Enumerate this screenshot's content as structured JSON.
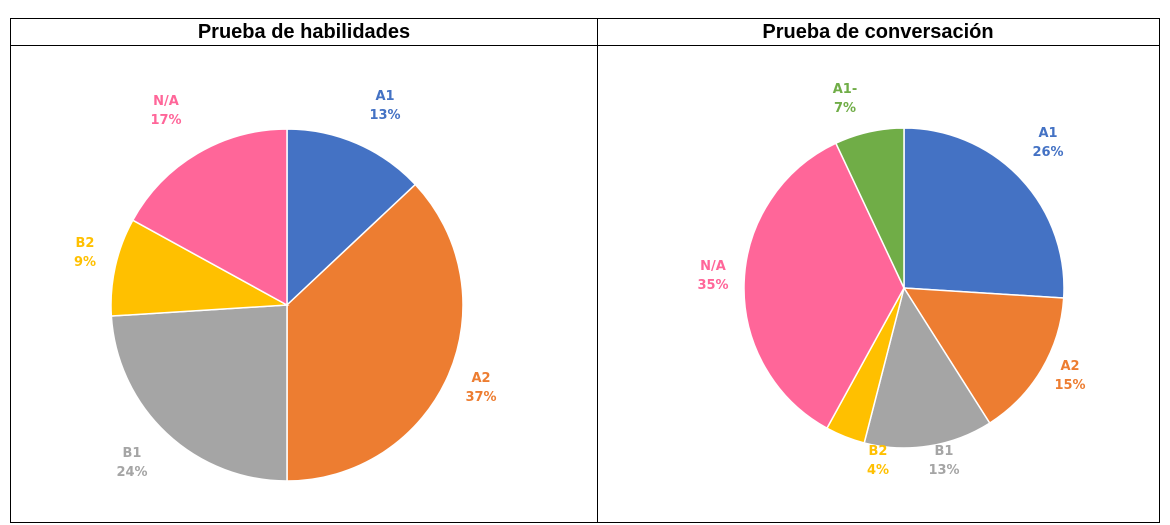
{
  "chart_data": [
    {
      "type": "pie",
      "title": "Prueba de habilidades",
      "categories": [
        "A1",
        "A2",
        "B1",
        "B2",
        "N/A"
      ],
      "values": [
        13,
        37,
        24,
        9,
        17
      ],
      "value_labels": [
        "13%",
        "37%",
        "24%",
        "9%",
        "17%"
      ],
      "colors": [
        "#4472c4",
        "#ed7d31",
        "#a5a5a5",
        "#ffc000",
        "#ff6699"
      ]
    },
    {
      "type": "pie",
      "title": "Prueba de conversación",
      "categories": [
        "A1",
        "A2",
        "B1",
        "B2",
        "N/A",
        "A1-"
      ],
      "values": [
        26,
        15,
        13,
        4,
        35,
        7
      ],
      "value_labels": [
        "26%",
        "15%",
        "13%",
        "4%",
        "35%",
        "7%"
      ],
      "colors": [
        "#4472c4",
        "#ed7d31",
        "#a5a5a5",
        "#ffc000",
        "#ff6699",
        "#70ad47"
      ]
    }
  ]
}
